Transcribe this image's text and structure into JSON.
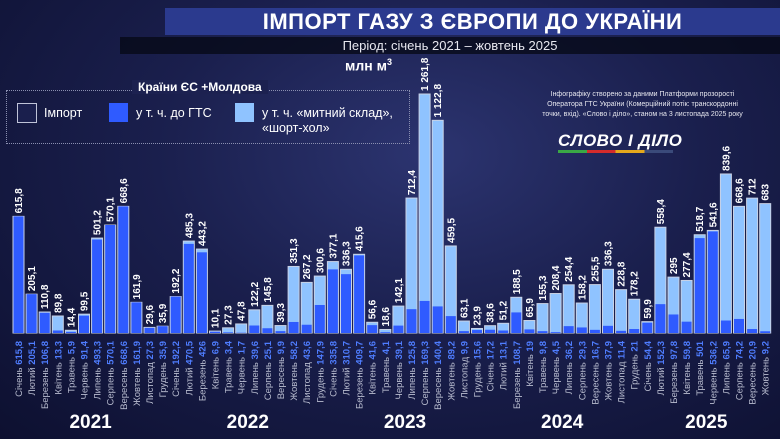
{
  "header": {
    "title": "ІМПОРТ ГАЗУ З ЄВРОПИ ДО УКРАЇНИ",
    "subtitle": "Період: січень 2021 – жовтень 2025",
    "unit": "млн м",
    "unit_sup": "3"
  },
  "legend": {
    "title": "Країни ЄС +Молдова",
    "items": [
      {
        "label": "Імпорт",
        "color": "#1a1f4d"
      },
      {
        "label": "у т. ч. до ГТС",
        "color": "#2f5bff"
      },
      {
        "label": "у т. ч. «митний склад», «шорт-хол»",
        "color": "#8fc3ff"
      }
    ]
  },
  "credit": {
    "text": "Інфографіку створено за даними Платформи прозорості Оператора ГТС України (Комерційний потік: транскордонні точки, вхід). «Слово і діло», станом на 3 листопада 2025 року",
    "logo": "СЛОВО І ДІЛО"
  },
  "chart_data": {
    "type": "bar",
    "colors": {
      "gts": "#2f5bff",
      "customs": "#8fc3ff",
      "gts_label": "#4f7dff"
    },
    "years": [
      "2021",
      "2022",
      "2023",
      "2024",
      "2025"
    ],
    "categories": [
      "Січень",
      "Лютий",
      "Березень",
      "Квітень",
      "Травень",
      "Червень",
      "Липень",
      "Серпень",
      "Вересень",
      "Жовтень",
      "Листопад",
      "Грудень",
      "Січень",
      "Лютий",
      "Березень",
      "Квітень",
      "Травень",
      "Червень",
      "Липень",
      "Серпень",
      "Вересень",
      "Жовтень",
      "Листопад",
      "Грудень",
      "Січень",
      "Лютий",
      "Березень",
      "Квітень",
      "Травень",
      "Червень",
      "Липень",
      "Серпень",
      "Вересень",
      "Жовтень",
      "Листопад",
      "Грудень",
      "Січень",
      "Лютий",
      "Березень",
      "Квітень",
      "Травень",
      "Червень",
      "Липень",
      "Серпень",
      "Вересень",
      "Жовтень",
      "Листопад",
      "Грудень",
      "Січень",
      "Лютий",
      "Березень",
      "Квітень",
      "Травень",
      "Червень",
      "Липень",
      "Серпень",
      "Вересень",
      "Жовтень"
    ],
    "series": [
      {
        "name": "Імпорт",
        "values": [
          615.8,
          205.1,
          110.8,
          89.8,
          14.4,
          99.5,
          501.2,
          570.1,
          668.6,
          161.9,
          29.6,
          35.9,
          192.2,
          485.3,
          443.2,
          10.1,
          27.3,
          47.8,
          122.2,
          145.8,
          39.3,
          351.3,
          267.2,
          300.6,
          377.1,
          336.3,
          415.6,
          56.6,
          18.6,
          142.1,
          712.4,
          1261.8,
          1122.8,
          459.5,
          63.1,
          23.9,
          38.6,
          51.2,
          188.5,
          65.9,
          155.3,
          208.4,
          254.4,
          158.2,
          255.5,
          336.3,
          228.8,
          178.2,
          59.9,
          558.4,
          295,
          277.4,
          518.7,
          541.6,
          839.6,
          668.6,
          712,
          683
        ]
      },
      {
        "name": "у т. ч. до ГТС",
        "values": [
          615.8,
          205.1,
          106.8,
          13.3,
          5.9,
          91.4,
          493.3,
          570.1,
          668.6,
          161.9,
          27.3,
          35.9,
          192.2,
          470.5,
          426,
          6.9,
          3.4,
          1.7,
          39.6,
          25.1,
          9.9,
          58.2,
          43.6,
          147.9,
          335.8,
          310.7,
          409.7,
          41.6,
          4.1,
          39.1,
          125.8,
          169.3,
          140.4,
          89.2,
          9.9,
          15.6,
          17.2,
          13.1,
          108.7,
          19,
          9.8,
          4.5,
          36.2,
          29.3,
          16.7,
          37.9,
          11.4,
          21,
          54.4,
          152.3,
          97.8,
          59.8,
          501,
          536.2,
          65.9,
          74.2,
          20.9,
          9.2
        ]
      }
    ],
    "ylim": [
      0,
      1300
    ]
  }
}
